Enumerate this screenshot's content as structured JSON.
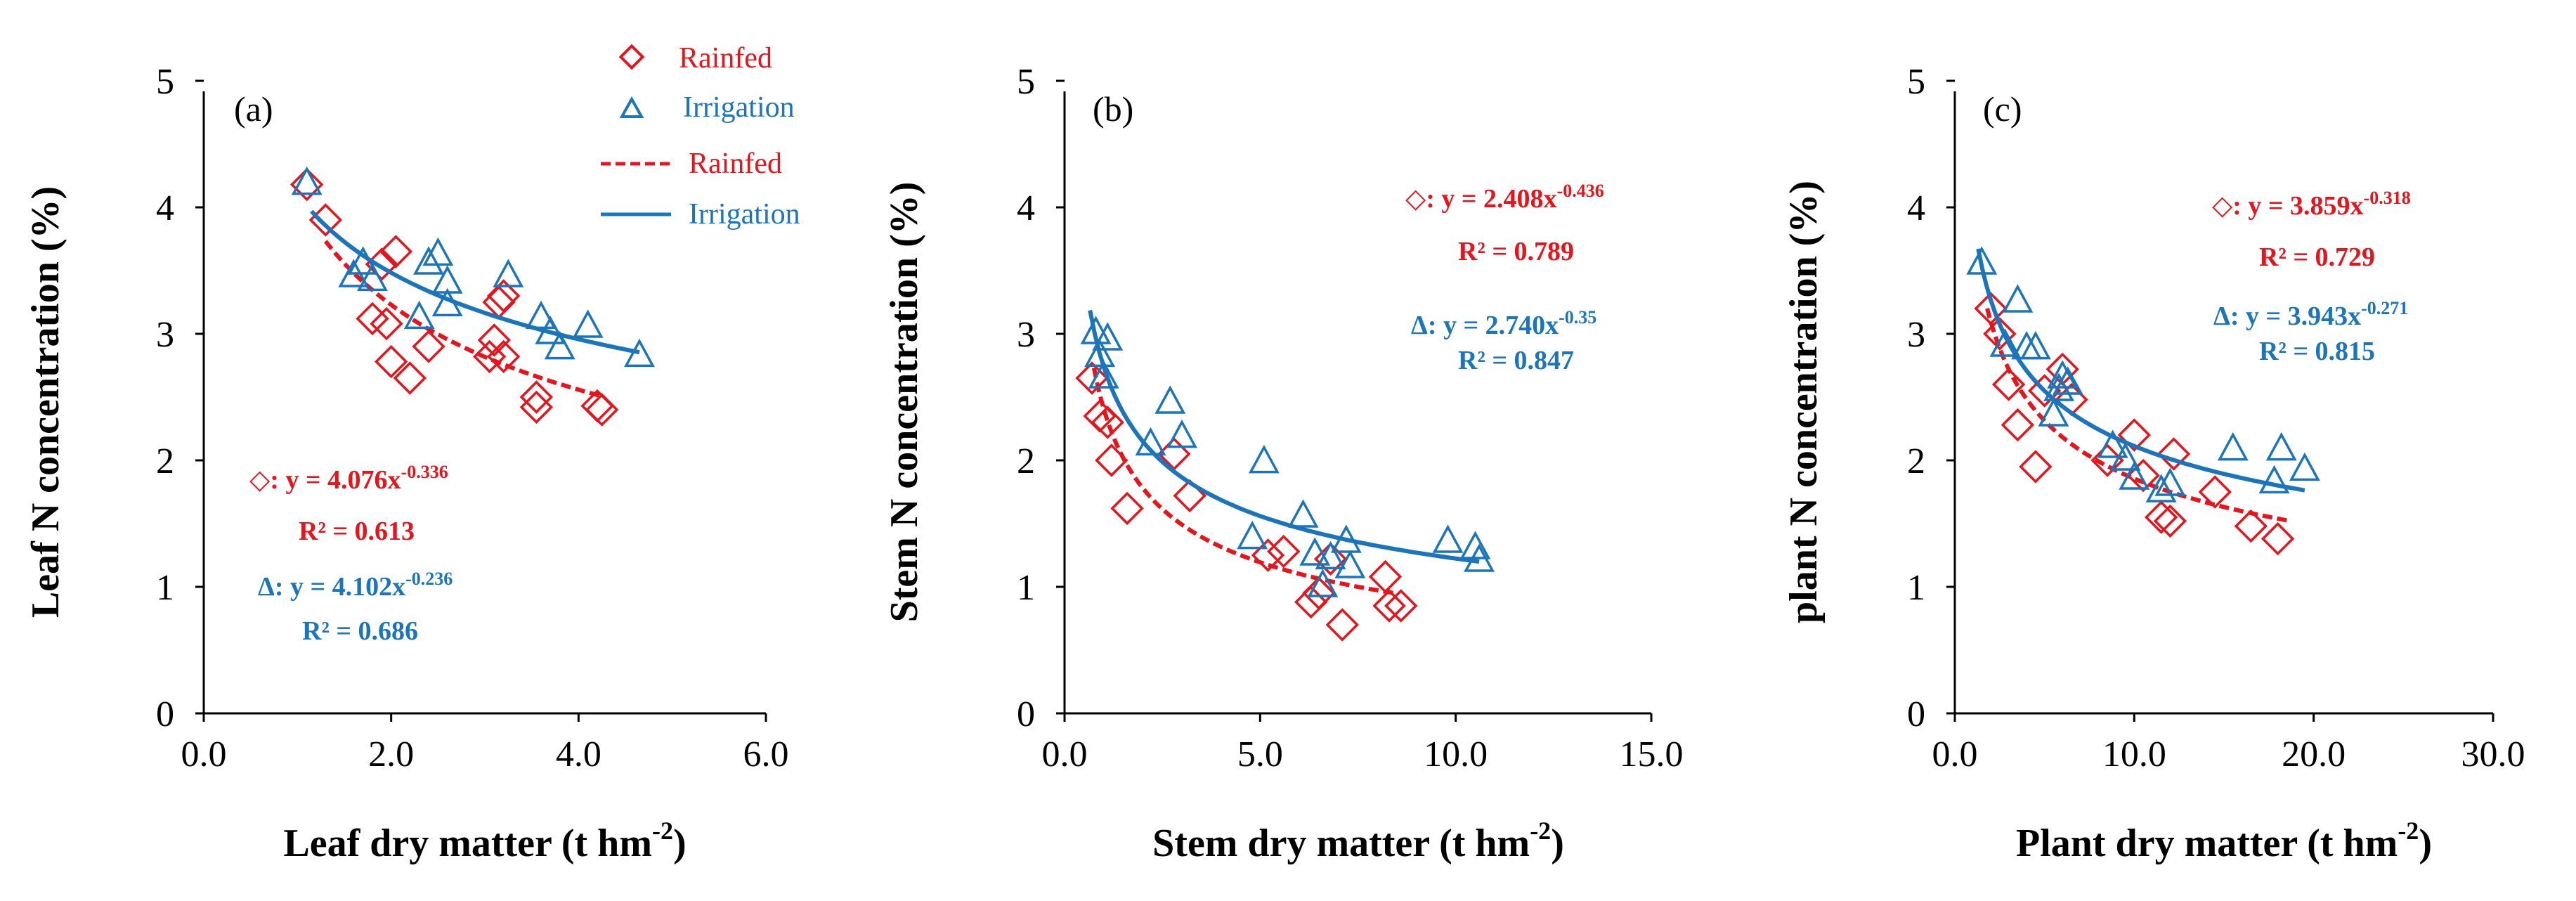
{
  "colors": {
    "rainfed": "#e8141c",
    "irrigation": "#1b75bc",
    "axis": "#000000"
  },
  "legend": {
    "entries": [
      {
        "label": "Rainfed",
        "kind": "marker",
        "series": "rainfed"
      },
      {
        "label": "Irrigation",
        "kind": "marker",
        "series": "irrigation"
      },
      {
        "label": "Rainfed",
        "kind": "line",
        "series": "rainfed"
      },
      {
        "label": "Irrigation",
        "kind": "line",
        "series": "irrigation"
      }
    ]
  },
  "chart_data": [
    {
      "type": "scatter",
      "panel": "(a)",
      "xlabel": "Leaf dry matter (t hm",
      "xlabel_sup": "-2",
      "xlabel_close": ")",
      "ylabel": "Leaf N concentration (%)",
      "xlim": [
        0,
        6
      ],
      "ylim": [
        0,
        5
      ],
      "xticks": [
        "0.0",
        "2.0",
        "4.0",
        "6.0"
      ],
      "yticks": [
        "0",
        "1",
        "2",
        "3",
        "4",
        "5"
      ],
      "series": [
        {
          "name": "Rainfed",
          "x": [
            1.1,
            1.3,
            1.8,
            1.9,
            1.95,
            2.0,
            2.05,
            2.2,
            2.4,
            3.05,
            3.1,
            3.2,
            3.15,
            3.2,
            3.55,
            3.55,
            4.2,
            4.25
          ],
          "y": [
            4.18,
            3.9,
            3.12,
            3.55,
            3.08,
            2.78,
            3.65,
            2.65,
            2.9,
            2.82,
            2.95,
            2.82,
            3.25,
            3.3,
            2.42,
            2.5,
            2.43,
            2.4
          ],
          "fit": {
            "a": 4.076,
            "b": -0.336,
            "xmin": 1.3,
            "xmax": 4.25
          },
          "equation": "y = 4.076x",
          "exponent": "-0.336",
          "r2": "R² = 0.613",
          "symbol_label": "◇: "
        },
        {
          "name": "Irrigation",
          "x": [
            1.1,
            1.6,
            1.7,
            1.8,
            2.3,
            2.4,
            2.5,
            2.6,
            2.6,
            3.25,
            3.6,
            3.7,
            3.8,
            4.1,
            4.65
          ],
          "y": [
            4.18,
            3.45,
            3.55,
            3.42,
            3.12,
            3.55,
            3.62,
            3.4,
            3.22,
            3.45,
            3.12,
            3.0,
            2.88,
            3.05,
            2.82
          ],
          "fit": {
            "a": 4.102,
            "b": -0.236,
            "xmin": 1.15,
            "xmax": 4.65
          },
          "equation": "y = 4.102x",
          "exponent": "-0.236",
          "r2": "R² = 0.686",
          "symbol_label": "Δ: "
        }
      ]
    },
    {
      "type": "scatter",
      "panel": "(b)",
      "xlabel": "Stem dry matter (t hm",
      "xlabel_sup": "-2",
      "xlabel_close": ")",
      "ylabel": "Stem N concentration (%)",
      "xlim": [
        0,
        15
      ],
      "ylim": [
        0,
        5
      ],
      "xticks": [
        "0.0",
        "5.0",
        "10.0",
        "15.0"
      ],
      "yticks": [
        "0",
        "1",
        "2",
        "3",
        "4",
        "5"
      ],
      "series": [
        {
          "name": "Rainfed",
          "x": [
            0.7,
            0.9,
            1.1,
            1.2,
            1.6,
            2.8,
            3.2,
            5.2,
            5.6,
            6.3,
            6.5,
            6.8,
            7.1,
            8.2,
            8.3,
            8.6
          ],
          "y": [
            2.65,
            2.35,
            2.3,
            2.0,
            1.62,
            2.05,
            1.72,
            1.25,
            1.28,
            0.88,
            0.95,
            1.22,
            0.7,
            1.08,
            0.85,
            0.85
          ],
          "fit": {
            "a": 2.408,
            "b": -0.436,
            "xmin": 0.75,
            "xmax": 8.4
          },
          "equation": "y = 2.408x",
          "exponent": "-0.436",
          "r2": "R² = 0.789",
          "symbol_label": "◇: "
        },
        {
          "name": "Irrigation",
          "x": [
            0.8,
            0.9,
            1.0,
            1.1,
            2.2,
            2.7,
            3.0,
            4.8,
            5.1,
            6.1,
            6.4,
            6.6,
            6.8,
            7.2,
            7.3,
            9.8,
            10.5,
            10.6
          ],
          "y": [
            3.0,
            2.82,
            2.65,
            2.95,
            2.12,
            2.45,
            2.18,
            1.38,
            1.98,
            1.55,
            1.25,
            1.0,
            1.22,
            1.35,
            1.15,
            1.35,
            1.3,
            1.2
          ],
          "fit": {
            "a": 2.74,
            "b": -0.35,
            "xmin": 0.65,
            "xmax": 10.6
          },
          "equation": "y = 2.740x",
          "exponent": "-0.35",
          "r2": "R² = 0.847",
          "symbol_label": "Δ: "
        }
      ]
    },
    {
      "type": "scatter",
      "panel": "(c)",
      "xlabel": "Plant dry matter (t hm",
      "xlabel_sup": "-2",
      "xlabel_close": ")",
      "ylabel": "plant N concentration (%)",
      "xlim": [
        0,
        30
      ],
      "ylim": [
        0,
        5
      ],
      "xticks": [
        "0.0",
        "10.0",
        "20.0",
        "30.0"
      ],
      "yticks": [
        "0",
        "1",
        "2",
        "3",
        "4",
        "5"
      ],
      "series": [
        {
          "name": "Rainfed",
          "x": [
            2.0,
            2.5,
            3.0,
            3.5,
            4.5,
            5.0,
            6.0,
            6.5,
            8.5,
            10.0,
            10.5,
            11.5,
            12.0,
            12.2,
            14.5,
            16.5,
            18.0
          ],
          "y": [
            3.2,
            3.0,
            2.6,
            2.28,
            1.95,
            2.55,
            2.72,
            2.48,
            2.0,
            2.2,
            1.88,
            1.55,
            1.52,
            2.05,
            1.75,
            1.48,
            1.38
          ],
          "fit": {
            "a": 3.859,
            "b": -0.318,
            "xmin": 1.8,
            "xmax": 18.5
          },
          "equation": "y = 3.859x",
          "exponent": "-0.318",
          "r2": "R² = 0.729",
          "symbol_label": "◇: "
        },
        {
          "name": "Irrigation",
          "x": [
            1.5,
            2.8,
            3.5,
            4.0,
            4.5,
            5.5,
            5.8,
            6.0,
            6.3,
            8.8,
            9.5,
            10.0,
            11.5,
            12.0,
            15.5,
            17.8,
            18.2,
            19.5
          ],
          "y": [
            3.55,
            2.9,
            3.25,
            2.88,
            2.88,
            2.35,
            2.55,
            2.65,
            2.6,
            2.1,
            2.0,
            1.85,
            1.75,
            1.8,
            2.08,
            1.82,
            2.08,
            1.92
          ],
          "fit": {
            "a": 3.943,
            "b": -0.271,
            "xmin": 1.3,
            "xmax": 19.5
          },
          "equation": "y = 3.943x",
          "exponent": "-0.271",
          "r2": "R² = 0.815",
          "symbol_label": "Δ: "
        }
      ]
    }
  ]
}
